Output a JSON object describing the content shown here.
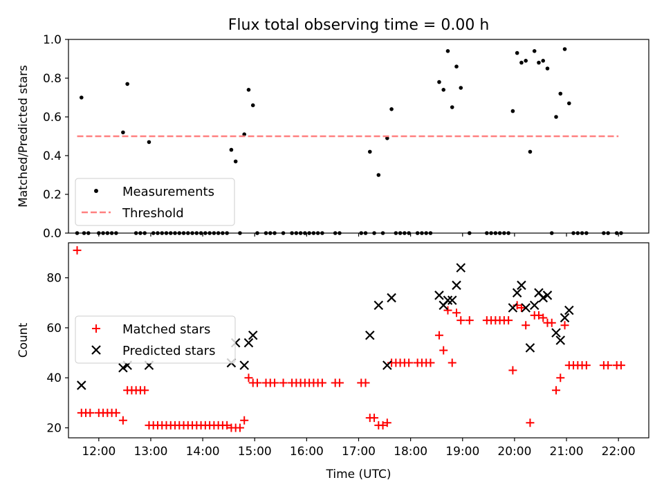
{
  "chart_data": [
    {
      "type": "scatter",
      "title": "Flux total observing time = 0.00 h",
      "xlabel": "",
      "ylabel": "Matched/Predicted stars",
      "xlim": [
        "11:25",
        "22:35"
      ],
      "ylim": [
        0,
        1
      ],
      "yticks": [
        "0.0",
        "0.2",
        "0.4",
        "0.6",
        "0.8",
        "1.0"
      ],
      "grid": false,
      "legend_position": "lower-left",
      "series": [
        {
          "name": "Measurements",
          "marker": "dot",
          "color": "#000000",
          "points": [
            [
              "11:40",
              0.7
            ],
            [
              "12:28",
              0.52
            ],
            [
              "12:33",
              0.77
            ],
            [
              "12:58",
              0.47
            ],
            [
              "14:33",
              0.43
            ],
            [
              "14:38",
              0.37
            ],
            [
              "14:48",
              0.51
            ],
            [
              "14:53",
              0.74
            ],
            [
              "14:58",
              0.66
            ],
            [
              "17:13",
              0.42
            ],
            [
              "17:23",
              0.3
            ],
            [
              "17:33",
              0.49
            ],
            [
              "17:38",
              0.64
            ],
            [
              "18:33",
              0.78
            ],
            [
              "18:38",
              0.74
            ],
            [
              "18:43",
              0.94
            ],
            [
              "18:48",
              0.65
            ],
            [
              "18:53",
              0.86
            ],
            [
              "18:58",
              0.75
            ],
            [
              "19:58",
              0.63
            ],
            [
              "20:03",
              0.93
            ],
            [
              "20:08",
              0.88
            ],
            [
              "20:13",
              0.89
            ],
            [
              "20:18",
              0.42
            ],
            [
              "20:23",
              0.94
            ],
            [
              "20:28",
              0.88
            ],
            [
              "20:33",
              0.89
            ],
            [
              "20:38",
              0.85
            ],
            [
              "20:48",
              0.6
            ],
            [
              "20:53",
              0.72
            ],
            [
              "20:58",
              0.95
            ],
            [
              "21:03",
              0.67
            ],
            [
              "11:35",
              0.0
            ],
            [
              "11:43",
              0.0
            ],
            [
              "11:48",
              0.0
            ],
            [
              "12:00",
              0.0
            ],
            [
              "12:05",
              0.0
            ],
            [
              "12:10",
              0.0
            ],
            [
              "12:15",
              0.0
            ],
            [
              "12:20",
              0.0
            ],
            [
              "12:43",
              0.0
            ],
            [
              "12:48",
              0.0
            ],
            [
              "12:53",
              0.0
            ],
            [
              "13:03",
              0.0
            ],
            [
              "13:08",
              0.0
            ],
            [
              "13:13",
              0.0
            ],
            [
              "13:18",
              0.0
            ],
            [
              "13:23",
              0.0
            ],
            [
              "13:28",
              0.0
            ],
            [
              "13:33",
              0.0
            ],
            [
              "13:38",
              0.0
            ],
            [
              "13:43",
              0.0
            ],
            [
              "13:48",
              0.0
            ],
            [
              "13:53",
              0.0
            ],
            [
              "13:58",
              0.0
            ],
            [
              "14:03",
              0.0
            ],
            [
              "14:08",
              0.0
            ],
            [
              "14:13",
              0.0
            ],
            [
              "14:18",
              0.0
            ],
            [
              "14:23",
              0.0
            ],
            [
              "14:28",
              0.0
            ],
            [
              "14:43",
              0.0
            ],
            [
              "15:03",
              0.0
            ],
            [
              "15:13",
              0.0
            ],
            [
              "15:18",
              0.0
            ],
            [
              "15:23",
              0.0
            ],
            [
              "15:33",
              0.0
            ],
            [
              "15:43",
              0.0
            ],
            [
              "15:48",
              0.0
            ],
            [
              "15:53",
              0.0
            ],
            [
              "15:58",
              0.0
            ],
            [
              "16:03",
              0.0
            ],
            [
              "16:08",
              0.0
            ],
            [
              "16:13",
              0.0
            ],
            [
              "16:18",
              0.0
            ],
            [
              "16:33",
              0.0
            ],
            [
              "16:38",
              0.0
            ],
            [
              "17:03",
              0.0
            ],
            [
              "17:08",
              0.0
            ],
            [
              "17:18",
              0.0
            ],
            [
              "17:28",
              0.0
            ],
            [
              "17:43",
              0.0
            ],
            [
              "17:48",
              0.0
            ],
            [
              "17:53",
              0.0
            ],
            [
              "17:58",
              0.0
            ],
            [
              "18:08",
              0.0
            ],
            [
              "18:13",
              0.0
            ],
            [
              "18:18",
              0.0
            ],
            [
              "18:23",
              0.0
            ],
            [
              "19:08",
              0.0
            ],
            [
              "19:28",
              0.0
            ],
            [
              "19:33",
              0.0
            ],
            [
              "19:38",
              0.0
            ],
            [
              "19:43",
              0.0
            ],
            [
              "19:48",
              0.0
            ],
            [
              "19:53",
              0.0
            ],
            [
              "20:43",
              0.0
            ],
            [
              "21:08",
              0.0
            ],
            [
              "21:13",
              0.0
            ],
            [
              "21:18",
              0.0
            ],
            [
              "21:23",
              0.0
            ],
            [
              "21:43",
              0.0
            ],
            [
              "21:48",
              0.0
            ],
            [
              "21:58",
              0.0
            ],
            [
              "22:03",
              0.0
            ]
          ]
        },
        {
          "name": "Threshold",
          "type": "line",
          "style": "dashed",
          "color": "#ff8080",
          "points": [
            [
              "11:35",
              0.5
            ],
            [
              "22:00",
              0.5
            ]
          ]
        }
      ]
    },
    {
      "type": "scatter",
      "title": "",
      "xlabel": "Time (UTC)",
      "ylabel": "Count",
      "xlim": [
        "11:25",
        "22:35"
      ],
      "ylim": [
        16,
        94
      ],
      "yticks": [
        "20",
        "40",
        "60",
        "80"
      ],
      "xticks": [
        "12:00",
        "13:00",
        "14:00",
        "15:00",
        "16:00",
        "17:00",
        "18:00",
        "19:00",
        "20:00",
        "21:00",
        "22:00"
      ],
      "grid": false,
      "legend_position": "center-left",
      "series": [
        {
          "name": "Matched stars",
          "marker": "plus",
          "color": "#ff0000",
          "points": [
            [
              "11:35",
              91
            ],
            [
              "11:40",
              26
            ],
            [
              "11:45",
              26
            ],
            [
              "11:50",
              26
            ],
            [
              "12:00",
              26
            ],
            [
              "12:05",
              26
            ],
            [
              "12:10",
              26
            ],
            [
              "12:15",
              26
            ],
            [
              "12:20",
              26
            ],
            [
              "12:28",
              23
            ],
            [
              "12:33",
              35
            ],
            [
              "12:38",
              35
            ],
            [
              "12:43",
              35
            ],
            [
              "12:48",
              35
            ],
            [
              "12:53",
              35
            ],
            [
              "12:58",
              21
            ],
            [
              "13:03",
              21
            ],
            [
              "13:08",
              21
            ],
            [
              "13:13",
              21
            ],
            [
              "13:18",
              21
            ],
            [
              "13:23",
              21
            ],
            [
              "13:28",
              21
            ],
            [
              "13:33",
              21
            ],
            [
              "13:38",
              21
            ],
            [
              "13:43",
              21
            ],
            [
              "13:48",
              21
            ],
            [
              "13:53",
              21
            ],
            [
              "13:58",
              21
            ],
            [
              "14:03",
              21
            ],
            [
              "14:08",
              21
            ],
            [
              "14:13",
              21
            ],
            [
              "14:18",
              21
            ],
            [
              "14:23",
              21
            ],
            [
              "14:28",
              21
            ],
            [
              "14:33",
              20
            ],
            [
              "14:38",
              20
            ],
            [
              "14:43",
              20
            ],
            [
              "14:48",
              23
            ],
            [
              "14:53",
              40
            ],
            [
              "14:58",
              38
            ],
            [
              "15:03",
              38
            ],
            [
              "15:13",
              38
            ],
            [
              "15:18",
              38
            ],
            [
              "15:23",
              38
            ],
            [
              "15:33",
              38
            ],
            [
              "15:43",
              38
            ],
            [
              "15:48",
              38
            ],
            [
              "15:53",
              38
            ],
            [
              "15:58",
              38
            ],
            [
              "16:03",
              38
            ],
            [
              "16:08",
              38
            ],
            [
              "16:13",
              38
            ],
            [
              "16:18",
              38
            ],
            [
              "16:33",
              38
            ],
            [
              "16:38",
              38
            ],
            [
              "17:03",
              38
            ],
            [
              "17:08",
              38
            ],
            [
              "17:13",
              24
            ],
            [
              "17:18",
              24
            ],
            [
              "17:23",
              21
            ],
            [
              "17:28",
              21
            ],
            [
              "17:33",
              22
            ],
            [
              "17:38",
              46
            ],
            [
              "17:43",
              46
            ],
            [
              "17:48",
              46
            ],
            [
              "17:53",
              46
            ],
            [
              "17:58",
              46
            ],
            [
              "18:08",
              46
            ],
            [
              "18:13",
              46
            ],
            [
              "18:18",
              46
            ],
            [
              "18:23",
              46
            ],
            [
              "18:33",
              57
            ],
            [
              "18:38",
              51
            ],
            [
              "18:43",
              67
            ],
            [
              "18:48",
              46
            ],
            [
              "18:53",
              66
            ],
            [
              "18:58",
              63
            ],
            [
              "19:08",
              63
            ],
            [
              "19:28",
              63
            ],
            [
              "19:33",
              63
            ],
            [
              "19:38",
              63
            ],
            [
              "19:43",
              63
            ],
            [
              "19:48",
              63
            ],
            [
              "19:53",
              63
            ],
            [
              "19:58",
              43
            ],
            [
              "20:03",
              69
            ],
            [
              "20:08",
              68
            ],
            [
              "20:13",
              61
            ],
            [
              "20:18",
              22
            ],
            [
              "20:23",
              65
            ],
            [
              "20:28",
              65
            ],
            [
              "20:33",
              64
            ],
            [
              "20:38",
              62
            ],
            [
              "20:43",
              62
            ],
            [
              "20:48",
              35
            ],
            [
              "20:53",
              40
            ],
            [
              "20:58",
              61
            ],
            [
              "21:03",
              45
            ],
            [
              "21:08",
              45
            ],
            [
              "21:13",
              45
            ],
            [
              "21:18",
              45
            ],
            [
              "21:23",
              45
            ],
            [
              "21:43",
              45
            ],
            [
              "21:48",
              45
            ],
            [
              "21:58",
              45
            ],
            [
              "22:03",
              45
            ]
          ]
        },
        {
          "name": "Predicted stars",
          "marker": "x",
          "color": "#000000",
          "points": [
            [
              "11:40",
              37
            ],
            [
              "12:28",
              44
            ],
            [
              "12:33",
              45
            ],
            [
              "12:58",
              45
            ],
            [
              "14:33",
              46
            ],
            [
              "14:38",
              54
            ],
            [
              "14:48",
              45
            ],
            [
              "14:53",
              54
            ],
            [
              "14:58",
              57
            ],
            [
              "17:13",
              57
            ],
            [
              "17:23",
              69
            ],
            [
              "17:33",
              45
            ],
            [
              "17:38",
              72
            ],
            [
              "18:33",
              73
            ],
            [
              "18:38",
              69
            ],
            [
              "18:43",
              71
            ],
            [
              "18:48",
              71
            ],
            [
              "18:53",
              77
            ],
            [
              "18:58",
              84
            ],
            [
              "19:58",
              68
            ],
            [
              "20:03",
              74
            ],
            [
              "20:08",
              77
            ],
            [
              "20:13",
              68
            ],
            [
              "20:18",
              52
            ],
            [
              "20:23",
              69
            ],
            [
              "20:28",
              74
            ],
            [
              "20:33",
              72
            ],
            [
              "20:38",
              73
            ],
            [
              "20:48",
              58
            ],
            [
              "20:53",
              55
            ],
            [
              "20:58",
              64
            ],
            [
              "21:03",
              67
            ]
          ]
        }
      ]
    }
  ]
}
